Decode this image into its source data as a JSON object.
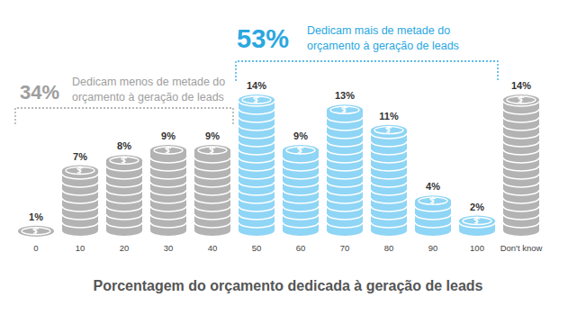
{
  "chart_data": {
    "type": "bar",
    "title": "Porcentagem do orçamento dedicada à geração de leads",
    "categories": [
      "0",
      "10",
      "20",
      "30",
      "40",
      "50",
      "60",
      "70",
      "80",
      "90",
      "100",
      "Don't know"
    ],
    "values": [
      1,
      7,
      8,
      9,
      9,
      14,
      9,
      13,
      11,
      4,
      2,
      14
    ],
    "value_labels": [
      "1%",
      "7%",
      "8%",
      "9%",
      "9%",
      "14%",
      "9%",
      "13%",
      "11%",
      "4%",
      "2%",
      "14%"
    ],
    "data_labels": true,
    "colors": [
      "#b3b3b3",
      "#b3b3b3",
      "#b3b3b3",
      "#b3b3b3",
      "#b3b3b3",
      "#8fd5f5",
      "#8fd5f5",
      "#8fd5f5",
      "#8fd5f5",
      "#8fd5f5",
      "#8fd5f5",
      "#b3b3b3"
    ],
    "ylim": [
      0,
      14
    ],
    "tick_labels": "x",
    "annotations": [
      {
        "label": "34%",
        "lines": [
          "Dedicam menos de metade do",
          "orçamento à geração de leads"
        ],
        "span": [
          "0",
          "40"
        ],
        "color": "#9e9e9e"
      },
      {
        "label": "53%",
        "lines": [
          "Dedicam mais de metade do",
          "orçamento à geração de leads"
        ],
        "span": [
          "50",
          "100"
        ],
        "color": "#2aa7df"
      }
    ]
  }
}
